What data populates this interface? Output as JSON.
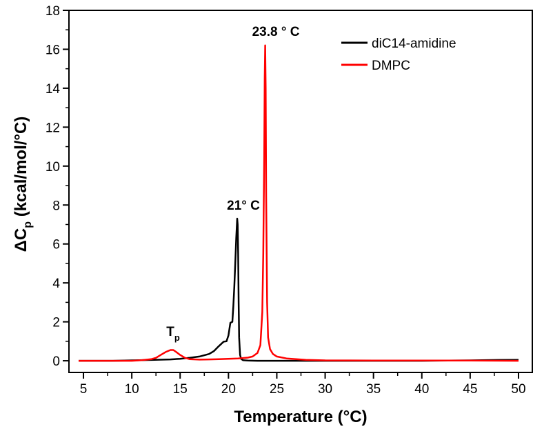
{
  "chart_data": {
    "type": "line",
    "xlabel": "Temperature (°C)",
    "ylabel": "ΔC",
    "ylabel_sub": "p",
    "ylabel_rest": " (kcal/mol/°C)",
    "xlim": [
      3.5,
      51.5
    ],
    "ylim": [
      -0.6,
      18
    ],
    "xticks": [
      5,
      10,
      15,
      20,
      25,
      30,
      35,
      40,
      45,
      50
    ],
    "yticks": [
      0,
      2,
      4,
      6,
      8,
      10,
      12,
      14,
      16,
      18
    ],
    "grid": false,
    "legend_position": "top-right",
    "series": [
      {
        "name": "diC14-amidine",
        "color": "#000000",
        "x": [
          4.5,
          8,
          10,
          12,
          14,
          15,
          16,
          17,
          18,
          18.5,
          19,
          19.5,
          19.8,
          20.0,
          20.2,
          20.4,
          20.5,
          20.6,
          20.7,
          20.8,
          20.9,
          20.95,
          21.0,
          21.05,
          21.1,
          21.2,
          21.3,
          21.5,
          22,
          23,
          25,
          30,
          35,
          40,
          45,
          48,
          50
        ],
        "y": [
          0.0,
          0.0,
          0.02,
          0.04,
          0.07,
          0.1,
          0.15,
          0.22,
          0.35,
          0.5,
          0.75,
          0.98,
          1.0,
          1.3,
          1.95,
          2.0,
          2.8,
          3.8,
          5.0,
          6.3,
          7.3,
          7.0,
          5.5,
          3.0,
          1.2,
          0.3,
          0.1,
          0.03,
          0.01,
          0.0,
          0.0,
          0.0,
          0.0,
          0.0,
          0.02,
          0.04,
          0.05
        ]
      },
      {
        "name": "DMPC",
        "color": "#ff0000",
        "x": [
          4.5,
          10,
          11,
          12,
          12.5,
          13,
          13.5,
          14,
          14.3,
          14.6,
          15,
          15.5,
          16,
          17,
          18,
          19,
          20,
          21,
          22,
          22.5,
          23,
          23.3,
          23.5,
          23.6,
          23.7,
          23.75,
          23.8,
          23.85,
          23.9,
          24.0,
          24.1,
          24.3,
          24.6,
          25,
          26,
          28,
          30,
          35,
          40,
          45,
          50
        ],
        "y": [
          0.0,
          0.0,
          0.03,
          0.08,
          0.15,
          0.3,
          0.45,
          0.55,
          0.55,
          0.45,
          0.3,
          0.15,
          0.08,
          0.06,
          0.07,
          0.08,
          0.1,
          0.12,
          0.16,
          0.22,
          0.4,
          0.8,
          2.5,
          5.5,
          10.5,
          14.5,
          16.2,
          14.0,
          8.5,
          3.0,
          1.2,
          0.6,
          0.35,
          0.22,
          0.12,
          0.05,
          0.02,
          0.01,
          0.01,
          0.01,
          0.0
        ]
      }
    ],
    "annotations": [
      {
        "text": "23.8 ° C",
        "x": 23.8,
        "y": 16.2
      },
      {
        "text": "21° C",
        "x": 21.0,
        "y": 7.3
      },
      {
        "text": "T",
        "sub": "p",
        "x": 14.0,
        "y": 0.55
      }
    ]
  }
}
